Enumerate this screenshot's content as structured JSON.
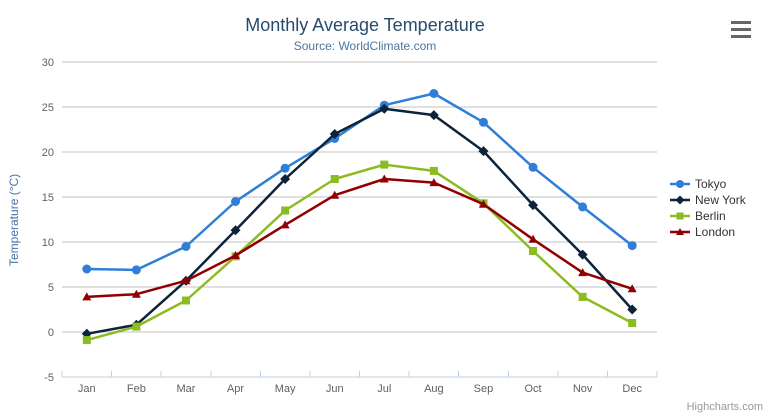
{
  "chart_data": {
    "type": "line",
    "title": "Monthly Average Temperature",
    "subtitle": "Source: WorldClimate.com",
    "categories": [
      "Jan",
      "Feb",
      "Mar",
      "Apr",
      "May",
      "Jun",
      "Jul",
      "Aug",
      "Sep",
      "Oct",
      "Nov",
      "Dec"
    ],
    "series": [
      {
        "name": "Tokyo",
        "color": "#2f7ed8",
        "marker": "circle",
        "values": [
          7.0,
          6.9,
          9.5,
          14.5,
          18.2,
          21.5,
          25.2,
          26.5,
          23.3,
          18.3,
          13.9,
          9.6
        ]
      },
      {
        "name": "New York",
        "color": "#0d233a",
        "marker": "diamond",
        "values": [
          -0.2,
          0.8,
          5.7,
          11.3,
          17.0,
          22.0,
          24.8,
          24.1,
          20.1,
          14.1,
          8.6,
          2.5
        ]
      },
      {
        "name": "Berlin",
        "color": "#8bbc21",
        "marker": "square",
        "values": [
          -0.9,
          0.6,
          3.5,
          8.4,
          13.5,
          17.0,
          18.6,
          17.9,
          14.3,
          9.0,
          3.9,
          1.0
        ]
      },
      {
        "name": "London",
        "color": "#910000",
        "marker": "triangle",
        "values": [
          3.9,
          4.2,
          5.7,
          8.5,
          11.9,
          15.2,
          17.0,
          16.6,
          14.2,
          10.3,
          6.6,
          4.8
        ]
      }
    ],
    "ylabel": "Temperature (°C)",
    "ylim": [
      -5,
      30
    ],
    "yticks": [
      -5,
      0,
      5,
      10,
      15,
      20,
      25,
      30
    ],
    "grid": true,
    "legend_position": "right",
    "colors": {
      "gridline": "#C0C0C0",
      "axis_line": "#C0D0E0",
      "tick_label": "#606060",
      "title": "#274b6d",
      "subtitle": "#4d759e",
      "yaxis_title": "#4572a7",
      "legend_text": "#333333"
    }
  },
  "credits": {
    "text": "Highcharts.com"
  }
}
